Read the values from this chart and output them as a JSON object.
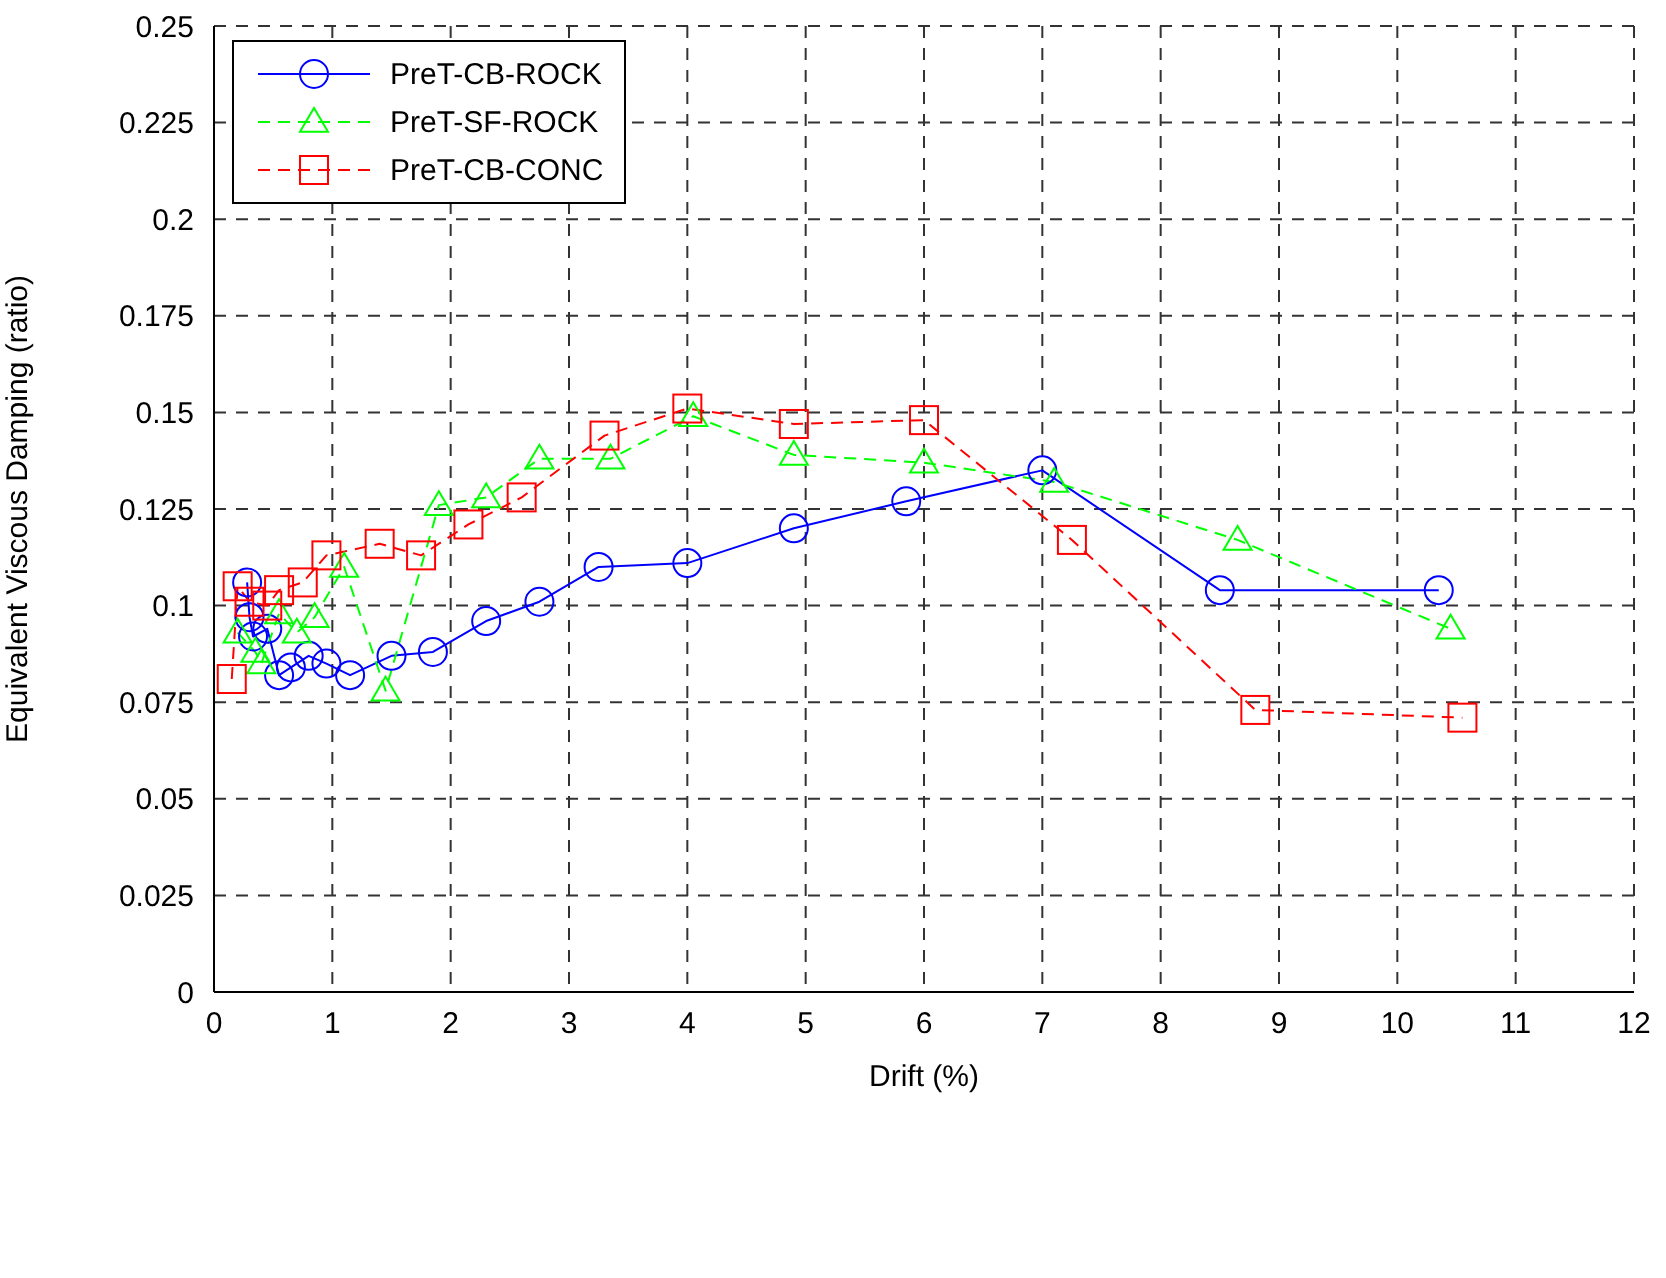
{
  "chart_data": {
    "type": "line",
    "xlabel": "Drift (%)",
    "ylabel": "Equivalent Viscous Damping (ratio)",
    "xlim": [
      0,
      12
    ],
    "xticks": [
      0,
      1,
      2,
      3,
      4,
      5,
      6,
      7,
      8,
      9,
      10,
      11,
      12
    ],
    "ylim": [
      0,
      0.25
    ],
    "yticks": [
      0,
      0.025,
      0.05,
      0.075,
      0.1,
      0.125,
      0.15,
      0.175,
      0.2,
      0.225,
      0.25
    ],
    "grid": true,
    "legend": "top left",
    "series": [
      {
        "name": "PreT-CB-ROCK",
        "color": "#0000ff",
        "marker": "circle",
        "line_style": "solid",
        "x": [
          0.28,
          0.3,
          0.33,
          0.45,
          0.55,
          0.65,
          0.8,
          0.95,
          1.15,
          1.5,
          1.85,
          2.3,
          2.75,
          3.25,
          4.0,
          4.9,
          5.85,
          7.0,
          8.5,
          10.35
        ],
        "values": [
          0.106,
          0.097,
          0.092,
          0.094,
          0.082,
          0.084,
          0.087,
          0.085,
          0.082,
          0.087,
          0.088,
          0.096,
          0.101,
          0.11,
          0.111,
          0.12,
          0.127,
          0.135,
          0.104,
          0.104
        ]
      },
      {
        "name": "PreT-SF-ROCK",
        "color": "#00ff00",
        "marker": "triangle",
        "line_style": "dashed",
        "x": [
          0.2,
          0.35,
          0.4,
          0.55,
          0.7,
          0.85,
          1.1,
          1.45,
          1.9,
          2.3,
          2.75,
          3.35,
          4.05,
          4.9,
          6.0,
          7.1,
          8.65,
          10.45
        ],
        "values": [
          0.093,
          0.088,
          0.085,
          0.098,
          0.093,
          0.097,
          0.11,
          0.078,
          0.126,
          0.128,
          0.138,
          0.138,
          0.149,
          0.139,
          0.137,
          0.132,
          0.117,
          0.094
        ]
      },
      {
        "name": "PreT-CB-CONC",
        "color": "#ff0000",
        "marker": "square",
        "line_style": "dashed",
        "x": [
          0.15,
          0.2,
          0.3,
          0.45,
          0.55,
          0.75,
          0.95,
          1.4,
          1.75,
          2.15,
          2.6,
          3.3,
          4.0,
          4.9,
          6.0,
          7.25,
          8.8,
          10.55
        ],
        "values": [
          0.081,
          0.105,
          0.101,
          0.1,
          0.104,
          0.106,
          0.113,
          0.116,
          0.113,
          0.121,
          0.128,
          0.144,
          0.151,
          0.147,
          0.148,
          0.117,
          0.073,
          0.071
        ]
      }
    ]
  }
}
